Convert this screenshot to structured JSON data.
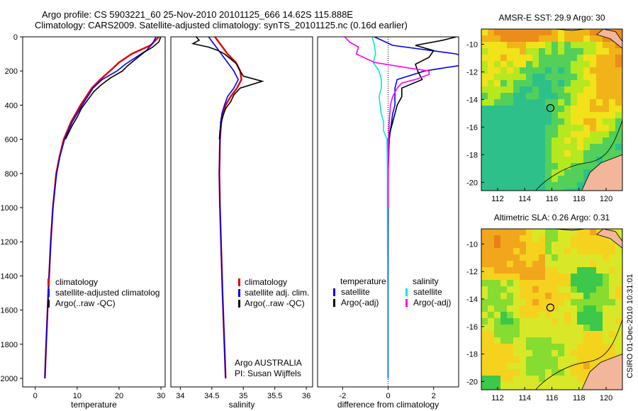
{
  "header": {
    "line1": "Argo profile: CS 5903221_60 25-Nov-2010 20101125_666 14.62S 115.888E",
    "line2": "Climatology: CARS2009. Satellite-adjusted climatology: synTS_20101125.nc (0.16d earlier)"
  },
  "credit": "CSIRO 01-Dec-2010 10:31:01",
  "chart_data": [
    {
      "type": "line",
      "panel": "temperature",
      "xlabel": "temperature",
      "ylabel": "",
      "xlim": [
        -3,
        31
      ],
      "ylim": [
        2050,
        0
      ],
      "xticks": [
        0,
        10,
        20,
        30
      ],
      "yticks": [
        0,
        200,
        400,
        600,
        800,
        1000,
        1200,
        1400,
        1600,
        1800,
        2000
      ],
      "grid": false,
      "legend": [
        "climatology",
        "satellite-adjusted climatology",
        "Argo(..raw -QC)"
      ],
      "legend_visible": [
        "climatology",
        "satellite-adjusted climatolog",
        "Argo(..raw -QC)"
      ],
      "legend_placement": "lower-right",
      "series": [
        {
          "name": "climatology",
          "color": "#e00000",
          "depth": [
            0,
            50,
            100,
            150,
            200,
            250,
            300,
            400,
            500,
            600,
            700,
            800,
            1000,
            1200,
            1500,
            1800,
            2000
          ],
          "values": [
            29.5,
            27.5,
            23.0,
            20.0,
            17.8,
            15.5,
            13.5,
            10.8,
            8.5,
            6.8,
            5.8,
            5.0,
            4.2,
            3.7,
            3.1,
            2.6,
            2.3
          ]
        },
        {
          "name": "satellite-adjusted climatology",
          "color": "#0000ee",
          "depth": [
            0,
            40,
            80,
            120,
            160,
            200,
            250,
            300,
            400,
            500,
            600,
            700,
            800,
            1000,
            1200,
            1500,
            1800,
            2000
          ],
          "values": [
            28.8,
            28.0,
            26.5,
            24.0,
            21.5,
            19.5,
            16.0,
            13.8,
            11.2,
            8.8,
            7.0,
            5.9,
            5.1,
            4.2,
            3.7,
            3.1,
            2.6,
            2.3
          ]
        },
        {
          "name": "Argo(..raw -QC)",
          "color": "#000000",
          "depth": [
            0,
            10,
            30,
            60,
            90,
            120,
            150,
            170,
            200,
            240,
            280,
            320,
            370,
            420,
            470,
            520,
            600
          ],
          "values": [
            29.9,
            29.8,
            29.5,
            28.0,
            26.0,
            24.5,
            23.0,
            22.0,
            20.8,
            18.0,
            15.8,
            14.0,
            12.5,
            11.0,
            10.0,
            8.8,
            7.2
          ]
        }
      ]
    },
    {
      "type": "line",
      "panel": "salinity",
      "xlabel": "salinity",
      "xlim": [
        33.85,
        36.1
      ],
      "ylim": [
        2050,
        0
      ],
      "xticks": [
        34,
        34.5,
        35,
        35.5,
        36
      ],
      "legend": [
        "climatology",
        "satellite adj. clim.",
        "Argo(..raw -QC)"
      ],
      "legend_placement": "lower-right",
      "annotation": [
        "Argo AUSTRALIA",
        "PI: Susan Wijffels"
      ],
      "series": [
        {
          "name": "climatology",
          "color": "#e00000",
          "depth": [
            0,
            50,
            100,
            150,
            200,
            250,
            300,
            350,
            400,
            450,
            500,
            600,
            800,
            1000,
            1500,
            2000
          ],
          "values": [
            34.55,
            34.65,
            34.75,
            34.88,
            34.95,
            34.97,
            34.9,
            34.8,
            34.72,
            34.68,
            34.65,
            34.63,
            34.62,
            34.63,
            34.67,
            34.72
          ]
        },
        {
          "name": "satellite adj. clim.",
          "color": "#0000ee",
          "depth": [
            0,
            50,
            100,
            150,
            200,
            250,
            300,
            350,
            400,
            450,
            500,
            600,
            800,
            1000,
            1500,
            2000
          ],
          "values": [
            34.45,
            34.55,
            34.65,
            34.75,
            34.85,
            34.92,
            34.85,
            34.75,
            34.7,
            34.66,
            34.64,
            34.63,
            34.62,
            34.63,
            34.67,
            34.72
          ]
        },
        {
          "name": "Argo(..raw -QC)",
          "color": "#000000",
          "depth": [
            0,
            20,
            40,
            60,
            80,
            100,
            130,
            160,
            200,
            230,
            260,
            300,
            340,
            380,
            420,
            460,
            500,
            550,
            600
          ],
          "values": [
            34.25,
            34.3,
            34.2,
            34.45,
            34.6,
            34.7,
            34.8,
            34.9,
            34.95,
            35.0,
            35.3,
            34.95,
            34.85,
            34.8,
            34.72,
            34.68,
            34.65,
            34.63,
            34.62
          ]
        }
      ]
    },
    {
      "type": "line",
      "panel": "difference",
      "xlabel": "difference from climatology",
      "xlim": [
        -3.1,
        3.1
      ],
      "ylim": [
        2050,
        0
      ],
      "xticks": [
        -2,
        0,
        2
      ],
      "zero_line": "dotted",
      "legend_temperature_header": "temperature",
      "legend_salinity_header": "salinity",
      "legend": [
        "satellite",
        "Argo(-adj)",
        "satellite",
        "Argo(-adj)"
      ],
      "legend_placement": "lower-right",
      "series": [
        {
          "name": "satellite",
          "quantity": "temperature",
          "color": "#0000ee",
          "depth": [
            0,
            50,
            100,
            150,
            200,
            250,
            300,
            350,
            400,
            450,
            500,
            600,
            800,
            1000,
            1500,
            2000
          ],
          "values": [
            -0.6,
            0.2,
            3.0,
            4.0,
            1.6,
            0.4,
            0.3,
            0.3,
            0.3,
            0.2,
            0.15,
            0.05,
            0.0,
            0.0,
            0.0,
            0.0
          ]
        },
        {
          "name": "Argo(-adj)",
          "quantity": "temperature",
          "color": "#000000",
          "depth": [
            0,
            20,
            50,
            80,
            120,
            160,
            200,
            250,
            300,
            350,
            400,
            450,
            500,
            550,
            600,
            800,
            1000
          ],
          "values": [
            3.0,
            2.4,
            1.2,
            2.0,
            1.8,
            1.2,
            1.3,
            1.5,
            0.6,
            0.6,
            0.4,
            0.3,
            0.2,
            0.1,
            0.0,
            0.0,
            0.0
          ]
        },
        {
          "name": "satellite",
          "quantity": "salinity",
          "color": "#00e5e5",
          "depth": [
            0,
            50,
            100,
            150,
            200,
            250,
            300,
            350,
            400,
            450,
            500,
            550,
            600,
            800,
            1000,
            1500,
            2000
          ],
          "values": [
            -0.7,
            -0.6,
            -0.55,
            -0.65,
            -0.4,
            -0.3,
            -0.3,
            -0.4,
            -0.35,
            -0.3,
            -0.2,
            -0.2,
            -0.05,
            -0.03,
            -0.03,
            -0.02,
            -0.02
          ]
        },
        {
          "name": "Argo(-adj)",
          "quantity": "salinity",
          "color": "#ff00ff",
          "depth": [
            0,
            30,
            60,
            100,
            150,
            180,
            200,
            220,
            250,
            270,
            300,
            350,
            400,
            500,
            600,
            800,
            1000
          ],
          "values": [
            -1.9,
            -1.7,
            -1.3,
            -1.4,
            -0.6,
            0.8,
            1.8,
            1.8,
            1.2,
            0.6,
            0.4,
            0.2,
            0.1,
            0.05,
            0.02,
            0.0,
            0.0
          ]
        }
      ]
    },
    {
      "type": "heatmap",
      "panel": "sst-map",
      "title": "AMSR-E SST: 29.9 Argo: 30",
      "xlim": [
        110.8,
        121.2
      ],
      "ylim": [
        -20.6,
        -8.9
      ],
      "xticks": [
        112,
        114,
        116,
        118,
        120
      ],
      "yticks": [
        -10,
        -12,
        -14,
        -16,
        -18,
        -20
      ],
      "marker": {
        "lon": 115.888,
        "lat": -14.62
      }
    },
    {
      "type": "heatmap",
      "panel": "sla-map",
      "title": "Altimetric SLA: 0.26 Argo: 0.31",
      "xlim": [
        110.8,
        121.2
      ],
      "ylim": [
        -20.6,
        -8.9
      ],
      "xticks": [
        112,
        114,
        116,
        118,
        120
      ],
      "yticks": [
        -10,
        -12,
        -14,
        -16,
        -18,
        -20
      ],
      "marker": {
        "lon": 115.888,
        "lat": -14.62
      }
    }
  ]
}
